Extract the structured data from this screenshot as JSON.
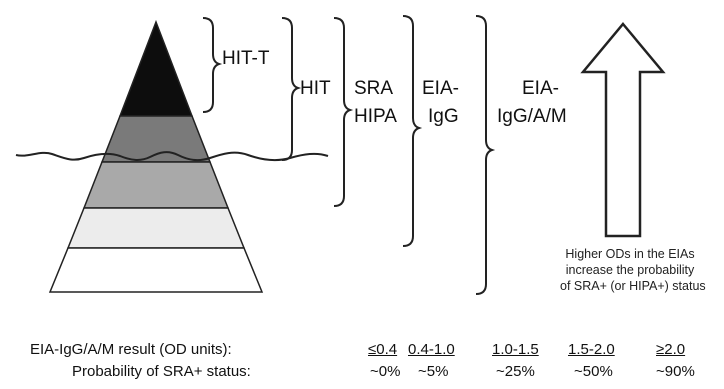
{
  "pyramid": {
    "colors": [
      "#0d0d0d",
      "#7a7a7a",
      "#a9a9a9",
      "#ececec",
      "#ffffff"
    ]
  },
  "brackets": {
    "hit_t": "HIT-T",
    "hit": "HIT",
    "sra_hipa": [
      "SRA",
      "HIPA"
    ],
    "eia_igg": [
      "EIA-",
      "IgG"
    ],
    "eia_iggam": [
      "EIA-",
      "IgG/A/M"
    ]
  },
  "arrow_note": [
    "Higher ODs in the EIAs",
    "increase the probability",
    "of SRA+ (or HIPA+) status"
  ],
  "table": {
    "row1_label": "EIA-IgG/A/M result (OD units):",
    "row2_label": "Probability of SRA+ status:",
    "ranges": [
      "≤0.4",
      "0.4-1.0",
      "1.0-1.5",
      "1.5-2.0",
      "≥2.0"
    ],
    "probabilities": [
      "~0%",
      "~5%",
      "~25%",
      "~50%",
      "~90%"
    ]
  }
}
